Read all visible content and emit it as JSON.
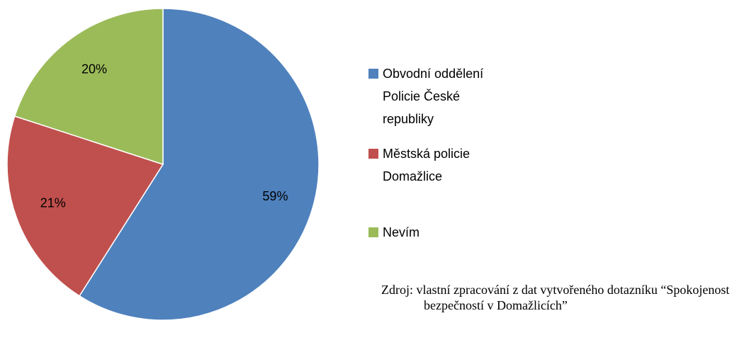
{
  "chart_data": {
    "type": "pie",
    "categories": [
      "Obvodní oddělení Policie České republiky",
      "Městská policie Domažlice",
      "Nevím"
    ],
    "values": [
      59,
      21,
      20
    ],
    "value_labels": [
      "59%",
      "21%",
      "20%"
    ],
    "colors": [
      "#4f81bd",
      "#c0504d",
      "#9bbb59"
    ],
    "legend": "right",
    "source": "Zdroj: vlastní zpracování z dat vytvořeného dotazníku “Spokojenost s bezpečností v Domažlicích”"
  }
}
